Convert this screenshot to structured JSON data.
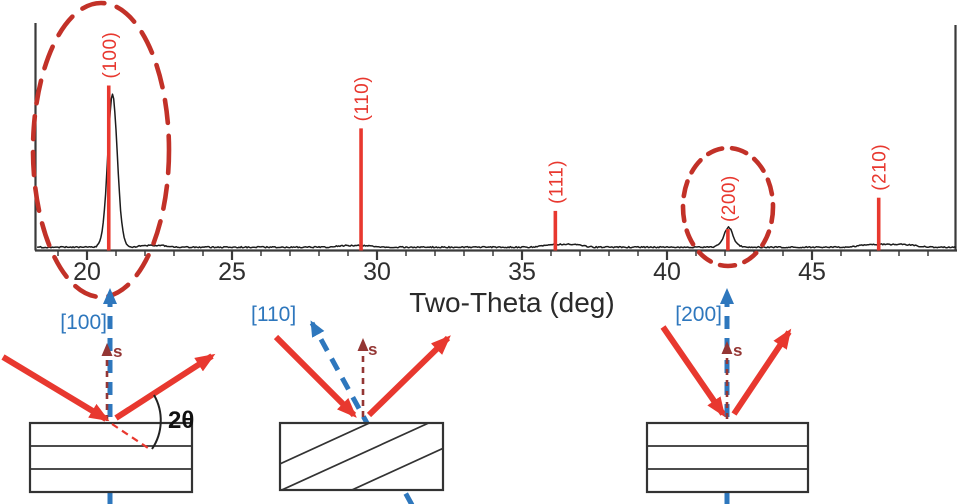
{
  "chart_data": {
    "type": "line",
    "title": "",
    "xlabel": "Two-Theta (deg)",
    "ylabel": "",
    "x_range": [
      18.2,
      50.0
    ],
    "x_major_ticks": [
      20,
      25,
      30,
      35,
      40,
      45
    ],
    "x_minor_tick_step": 1,
    "grid": false,
    "legend": "none",
    "reference_peaks": [
      {
        "hkl": "(100)",
        "two_theta": 20.75,
        "rel_intensity": 100
      },
      {
        "hkl": "(110)",
        "two_theta": 29.45,
        "rel_intensity": 74
      },
      {
        "hkl": "(111)",
        "two_theta": 36.15,
        "rel_intensity": 24
      },
      {
        "hkl": "(200)",
        "two_theta": 42.1,
        "rel_intensity": 13
      },
      {
        "hkl": "(210)",
        "two_theta": 47.3,
        "rel_intensity": 32
      }
    ],
    "measured_peaks": [
      {
        "two_theta": 20.88,
        "rel_intensity": 100,
        "sigma_deg": 0.16
      },
      {
        "two_theta": 42.12,
        "rel_intensity": 12,
        "sigma_deg": 0.14
      }
    ],
    "minor_features": [
      {
        "two_theta": 20.88,
        "rel_intensity": 4.0,
        "width_deg": 0.45
      },
      {
        "two_theta": 22.3,
        "rel_intensity": 1.2,
        "width_deg": 0.6
      },
      {
        "two_theta": 29.2,
        "rel_intensity": 1.1,
        "width_deg": 0.7
      },
      {
        "two_theta": 36.4,
        "rel_intensity": 1.9,
        "width_deg": 0.8
      },
      {
        "two_theta": 42.12,
        "rel_intensity": 1.6,
        "width_deg": 0.45
      },
      {
        "two_theta": 47.6,
        "rel_intensity": 1.9,
        "width_deg": 1.1
      }
    ],
    "highlighted_peaks": [
      "(100)",
      "(200)"
    ]
  },
  "annotations": {
    "two_theta_symbol": "2θ",
    "scattering_vector_label": "s",
    "diagrams": [
      {
        "direction_label": "[100]",
        "planes": "horizontal"
      },
      {
        "direction_label": "[110]",
        "planes": "tilted"
      },
      {
        "direction_label": "[200]",
        "planes": "horizontal"
      }
    ]
  },
  "colors": {
    "peak_marker_red": "#e8382f",
    "highlight_ellipse_red": "#c23128",
    "direction_arrow_blue": "#2e77bd",
    "scattering_vector_maroon": "#943634",
    "trace_black": "#1c1c1c",
    "axis_gray": "#3a3a3a"
  }
}
